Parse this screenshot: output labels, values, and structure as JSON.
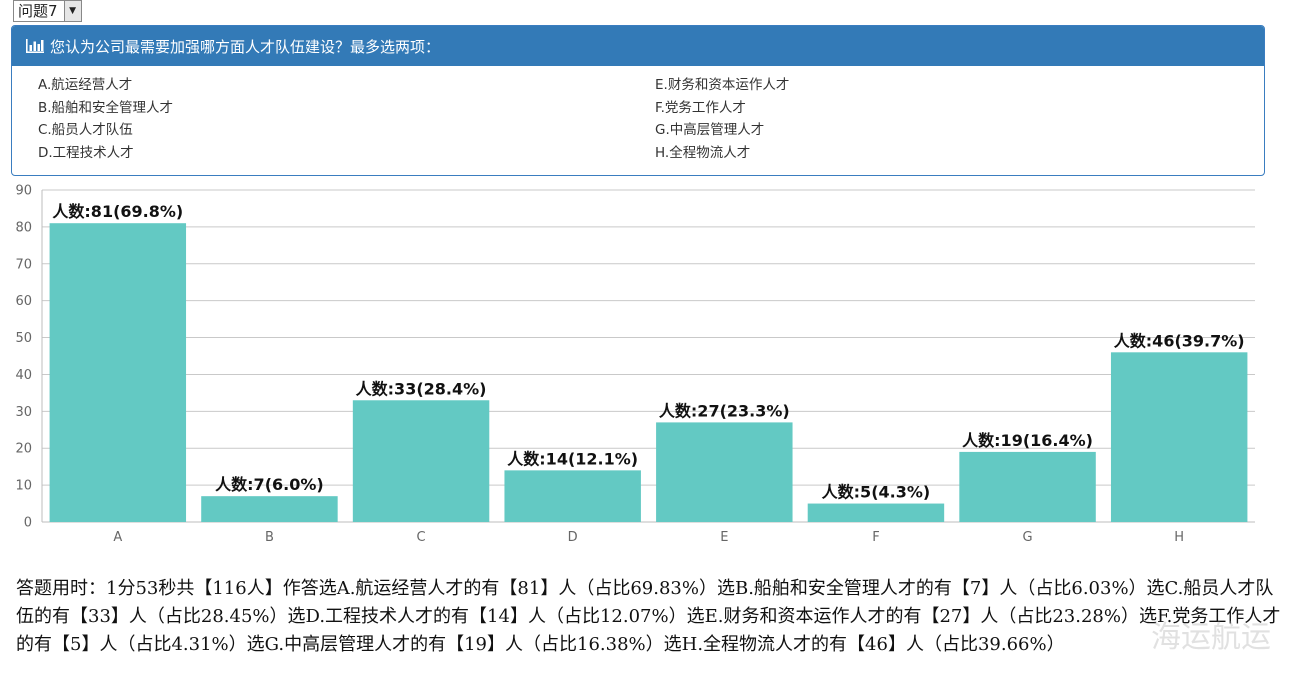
{
  "question_select": {
    "label": "问题7"
  },
  "panel": {
    "title": "您认为公司最需要加强哪方面人才队伍建设？最多选两项：",
    "options": [
      "A.航运经营人才",
      "E.财务和资本运作人才",
      "B.船舶和安全管理人才",
      "F.党务工作人才",
      "C.船员人才队伍",
      "G.中高层管理人才",
      "D.工程技术人才",
      "H.全程物流人才"
    ]
  },
  "chart_data": {
    "type": "bar",
    "categories": [
      "A",
      "B",
      "C",
      "D",
      "E",
      "F",
      "G",
      "H"
    ],
    "values": [
      81,
      7,
      33,
      14,
      27,
      5,
      19,
      46
    ],
    "labels": [
      "人数:81(69.8%)",
      "人数:7(6.0%)",
      "人数:33(28.4%)",
      "人数:14(12.1%)",
      "人数:27(23.3%)",
      "人数:5(4.3%)",
      "人数:19(16.4%)",
      "人数:46(39.7%)"
    ],
    "ylim": [
      0,
      90
    ],
    "yticks": [
      0,
      10,
      20,
      30,
      40,
      50,
      60,
      70,
      80,
      90
    ],
    "grid": true,
    "bar_color": "#63c9c3"
  },
  "summary": "答题用时：1分53秒共【116人】作答选A.航运经营人才的有【81】人（占比69.83%）选B.船舶和安全管理人才的有【7】人（占比6.03%）选C.船员人才队伍的有【33】人（占比28.45%）选D.工程技术人才的有【14】人（占比12.07%）选E.财务和资本运作人才的有【27】人（占比23.28%）选F.党务工作人才的有【5】人（占比4.31%）选G.中高层管理人才的有【19】人（占比16.38%）选H.全程物流人才的有【46】人（占比39.66%）",
  "watermark": "海运航运"
}
